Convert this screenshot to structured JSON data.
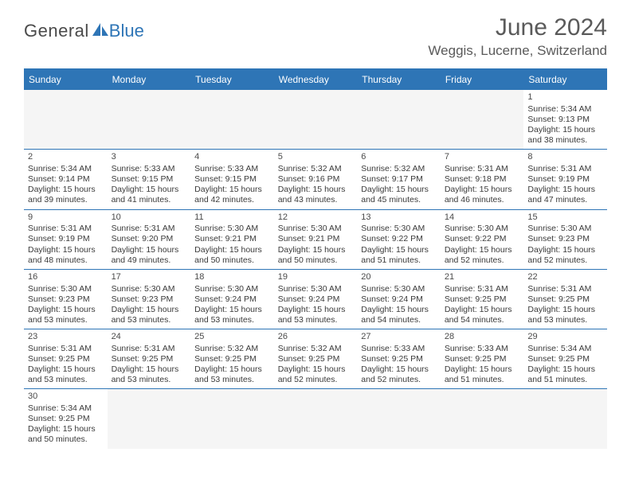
{
  "logo": {
    "general": "General",
    "blue": "Blue"
  },
  "title": {
    "month": "June 2024",
    "location": "Weggis, Lucerne, Switzerland"
  },
  "colors": {
    "brand": "#2e75b6",
    "text": "#3a3a3a",
    "header_text": "#5a5a5a",
    "empty_bg": "#f5f5f5",
    "white": "#ffffff"
  },
  "dayNames": [
    "Sunday",
    "Monday",
    "Tuesday",
    "Wednesday",
    "Thursday",
    "Friday",
    "Saturday"
  ],
  "weeks": [
    [
      null,
      null,
      null,
      null,
      null,
      null,
      {
        "n": "1",
        "sr": "Sunrise: 5:34 AM",
        "ss": "Sunset: 9:13 PM",
        "dl": "Daylight: 15 hours and 38 minutes."
      }
    ],
    [
      {
        "n": "2",
        "sr": "Sunrise: 5:34 AM",
        "ss": "Sunset: 9:14 PM",
        "dl": "Daylight: 15 hours and 39 minutes."
      },
      {
        "n": "3",
        "sr": "Sunrise: 5:33 AM",
        "ss": "Sunset: 9:15 PM",
        "dl": "Daylight: 15 hours and 41 minutes."
      },
      {
        "n": "4",
        "sr": "Sunrise: 5:33 AM",
        "ss": "Sunset: 9:15 PM",
        "dl": "Daylight: 15 hours and 42 minutes."
      },
      {
        "n": "5",
        "sr": "Sunrise: 5:32 AM",
        "ss": "Sunset: 9:16 PM",
        "dl": "Daylight: 15 hours and 43 minutes."
      },
      {
        "n": "6",
        "sr": "Sunrise: 5:32 AM",
        "ss": "Sunset: 9:17 PM",
        "dl": "Daylight: 15 hours and 45 minutes."
      },
      {
        "n": "7",
        "sr": "Sunrise: 5:31 AM",
        "ss": "Sunset: 9:18 PM",
        "dl": "Daylight: 15 hours and 46 minutes."
      },
      {
        "n": "8",
        "sr": "Sunrise: 5:31 AM",
        "ss": "Sunset: 9:19 PM",
        "dl": "Daylight: 15 hours and 47 minutes."
      }
    ],
    [
      {
        "n": "9",
        "sr": "Sunrise: 5:31 AM",
        "ss": "Sunset: 9:19 PM",
        "dl": "Daylight: 15 hours and 48 minutes."
      },
      {
        "n": "10",
        "sr": "Sunrise: 5:31 AM",
        "ss": "Sunset: 9:20 PM",
        "dl": "Daylight: 15 hours and 49 minutes."
      },
      {
        "n": "11",
        "sr": "Sunrise: 5:30 AM",
        "ss": "Sunset: 9:21 PM",
        "dl": "Daylight: 15 hours and 50 minutes."
      },
      {
        "n": "12",
        "sr": "Sunrise: 5:30 AM",
        "ss": "Sunset: 9:21 PM",
        "dl": "Daylight: 15 hours and 50 minutes."
      },
      {
        "n": "13",
        "sr": "Sunrise: 5:30 AM",
        "ss": "Sunset: 9:22 PM",
        "dl": "Daylight: 15 hours and 51 minutes."
      },
      {
        "n": "14",
        "sr": "Sunrise: 5:30 AM",
        "ss": "Sunset: 9:22 PM",
        "dl": "Daylight: 15 hours and 52 minutes."
      },
      {
        "n": "15",
        "sr": "Sunrise: 5:30 AM",
        "ss": "Sunset: 9:23 PM",
        "dl": "Daylight: 15 hours and 52 minutes."
      }
    ],
    [
      {
        "n": "16",
        "sr": "Sunrise: 5:30 AM",
        "ss": "Sunset: 9:23 PM",
        "dl": "Daylight: 15 hours and 53 minutes."
      },
      {
        "n": "17",
        "sr": "Sunrise: 5:30 AM",
        "ss": "Sunset: 9:23 PM",
        "dl": "Daylight: 15 hours and 53 minutes."
      },
      {
        "n": "18",
        "sr": "Sunrise: 5:30 AM",
        "ss": "Sunset: 9:24 PM",
        "dl": "Daylight: 15 hours and 53 minutes."
      },
      {
        "n": "19",
        "sr": "Sunrise: 5:30 AM",
        "ss": "Sunset: 9:24 PM",
        "dl": "Daylight: 15 hours and 53 minutes."
      },
      {
        "n": "20",
        "sr": "Sunrise: 5:30 AM",
        "ss": "Sunset: 9:24 PM",
        "dl": "Daylight: 15 hours and 54 minutes."
      },
      {
        "n": "21",
        "sr": "Sunrise: 5:31 AM",
        "ss": "Sunset: 9:25 PM",
        "dl": "Daylight: 15 hours and 54 minutes."
      },
      {
        "n": "22",
        "sr": "Sunrise: 5:31 AM",
        "ss": "Sunset: 9:25 PM",
        "dl": "Daylight: 15 hours and 53 minutes."
      }
    ],
    [
      {
        "n": "23",
        "sr": "Sunrise: 5:31 AM",
        "ss": "Sunset: 9:25 PM",
        "dl": "Daylight: 15 hours and 53 minutes."
      },
      {
        "n": "24",
        "sr": "Sunrise: 5:31 AM",
        "ss": "Sunset: 9:25 PM",
        "dl": "Daylight: 15 hours and 53 minutes."
      },
      {
        "n": "25",
        "sr": "Sunrise: 5:32 AM",
        "ss": "Sunset: 9:25 PM",
        "dl": "Daylight: 15 hours and 53 minutes."
      },
      {
        "n": "26",
        "sr": "Sunrise: 5:32 AM",
        "ss": "Sunset: 9:25 PM",
        "dl": "Daylight: 15 hours and 52 minutes."
      },
      {
        "n": "27",
        "sr": "Sunrise: 5:33 AM",
        "ss": "Sunset: 9:25 PM",
        "dl": "Daylight: 15 hours and 52 minutes."
      },
      {
        "n": "28",
        "sr": "Sunrise: 5:33 AM",
        "ss": "Sunset: 9:25 PM",
        "dl": "Daylight: 15 hours and 51 minutes."
      },
      {
        "n": "29",
        "sr": "Sunrise: 5:34 AM",
        "ss": "Sunset: 9:25 PM",
        "dl": "Daylight: 15 hours and 51 minutes."
      }
    ],
    [
      {
        "n": "30",
        "sr": "Sunrise: 5:34 AM",
        "ss": "Sunset: 9:25 PM",
        "dl": "Daylight: 15 hours and 50 minutes."
      },
      null,
      null,
      null,
      null,
      null,
      null
    ]
  ]
}
